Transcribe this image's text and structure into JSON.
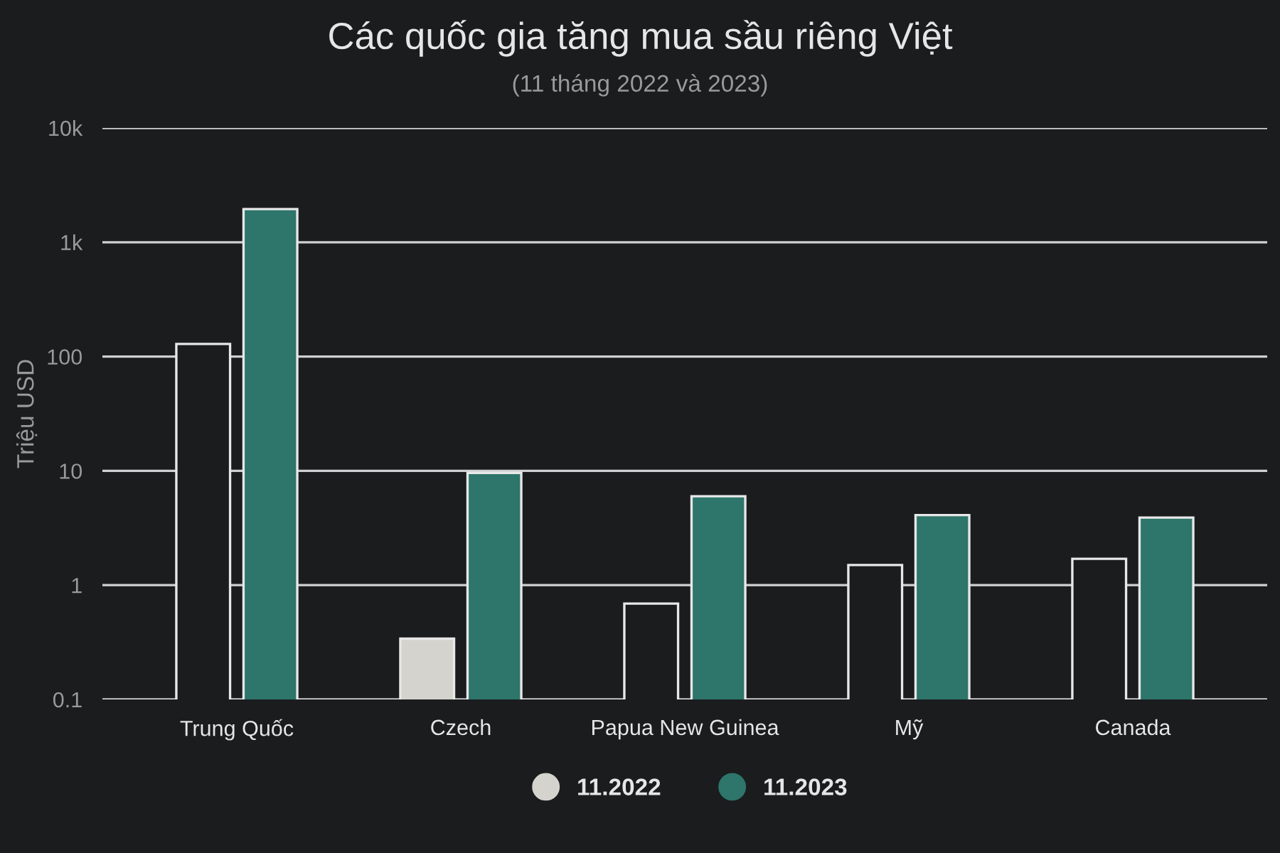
{
  "chart_data": {
    "type": "bar",
    "title": "Các quốc gia tăng mua sầu riêng Việt",
    "subtitle": "(11 tháng 2022 và 2023)",
    "ylabel": "Triệu USD",
    "categories": [
      "Trung Quốc",
      "Czech",
      "Papua New Guinea",
      "Mỹ",
      "Canada"
    ],
    "series": [
      {
        "name": "11.2022",
        "color": "#d5d3ce",
        "colors": [
          "#1b1c1e",
          "#d5d3ce",
          "#1b1c1e",
          "#1b1c1e",
          "#1b1c1e"
        ],
        "values": [
          129,
          0.34,
          0.69,
          1.5,
          1.7
        ]
      },
      {
        "name": "11.2023",
        "color": "#2e756b",
        "colors": [
          "#2e756b",
          "#2e756b",
          "#2e756b",
          "#2e756b",
          "#2e756b"
        ],
        "values": [
          1950,
          9.6,
          6.0,
          4.1,
          3.9
        ]
      }
    ],
    "log": "y",
    "ylim": [
      0.1,
      10000
    ],
    "yticks": [
      0.1,
      1,
      10,
      100,
      {
        "value": 1000,
        "label": "1k"
      },
      {
        "value": 10000,
        "label": "10k"
      }
    ],
    "grid": "y",
    "legend": "bottom"
  }
}
